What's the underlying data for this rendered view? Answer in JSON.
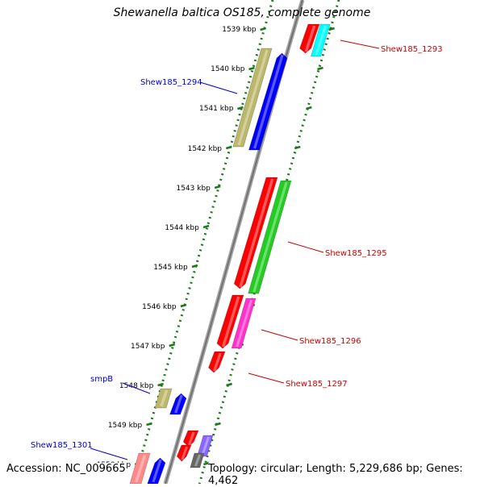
{
  "title": "Shewanella baltica OS185, complete genome",
  "accession": "Accession: NC_009665",
  "topology": "Topology: circular; Length: 5,229,686 bp; Genes: 4,462",
  "colors": {
    "backbone": "#8c8c8c",
    "tick": "#1a7a1a",
    "forward_label": "#0000cc",
    "reverse_label": "#cc0000"
  },
  "kbp_labels": [
    "1539 kbp",
    "1540 kbp",
    "1541 kbp",
    "1542 kbp",
    "1543 kbp",
    "1544 kbp",
    "1545 kbp",
    "1546 kbp",
    "1547 kbp",
    "1548 kbp",
    "1549 kbp",
    "1550 kbp"
  ],
  "gene_labels": [
    {
      "text": "Shew185_1293",
      "strand": "reverse"
    },
    {
      "text": "Shew185_1294",
      "strand": "forward"
    },
    {
      "text": "Shew185_1295",
      "strand": "reverse"
    },
    {
      "text": "Shew185_1296",
      "strand": "reverse"
    },
    {
      "text": "Shew185_1297",
      "strand": "reverse"
    },
    {
      "text": "smpB",
      "strand": "forward"
    },
    {
      "text": "Shew185_1301",
      "strand": "forward"
    }
  ],
  "features": [
    {
      "name": "Shew185_1293",
      "color": "#ff0000",
      "lane": "rev1"
    },
    {
      "name": "Shew185_1293-partner",
      "color": "#00ffff",
      "lane": "rev2"
    },
    {
      "name": "Shew185_1294-cog",
      "color": "#bdb76b",
      "lane": "fwd2"
    },
    {
      "name": "Shew185_1294",
      "color": "#0000ff",
      "lane": "fwd1"
    },
    {
      "name": "Shew185_1295",
      "color": "#ff0000",
      "lane": "rev1"
    },
    {
      "name": "Shew185_1295-cog",
      "color": "#22cc22",
      "lane": "rev2"
    },
    {
      "name": "Shew185_1296",
      "color": "#ff0000",
      "lane": "rev1"
    },
    {
      "name": "Shew185_1296-cog",
      "color": "#ff33cc",
      "lane": "rev2"
    },
    {
      "name": "Shew185_1297",
      "color": "#ff0000",
      "lane": "rev1"
    },
    {
      "name": "smpB-cog",
      "color": "#bdb76b",
      "lane": "fwd2"
    },
    {
      "name": "smpB",
      "color": "#0000ff",
      "lane": "fwd1"
    },
    {
      "name": "gene-1549-a",
      "color": "#ff0000",
      "lane": "rev1"
    },
    {
      "name": "gene-1549-b",
      "color": "#ff0000",
      "lane": "rev1"
    },
    {
      "name": "gene-1549-cog",
      "color": "#8866ff",
      "lane": "rev2"
    },
    {
      "name": "gene-1550-cog",
      "color": "#666666",
      "lane": "rev2"
    },
    {
      "name": "Shew185_1301-cog",
      "color": "#ff8888",
      "lane": "fwd2"
    },
    {
      "name": "Shew185_1301",
      "color": "#0000ff",
      "lane": "fwd1"
    }
  ]
}
